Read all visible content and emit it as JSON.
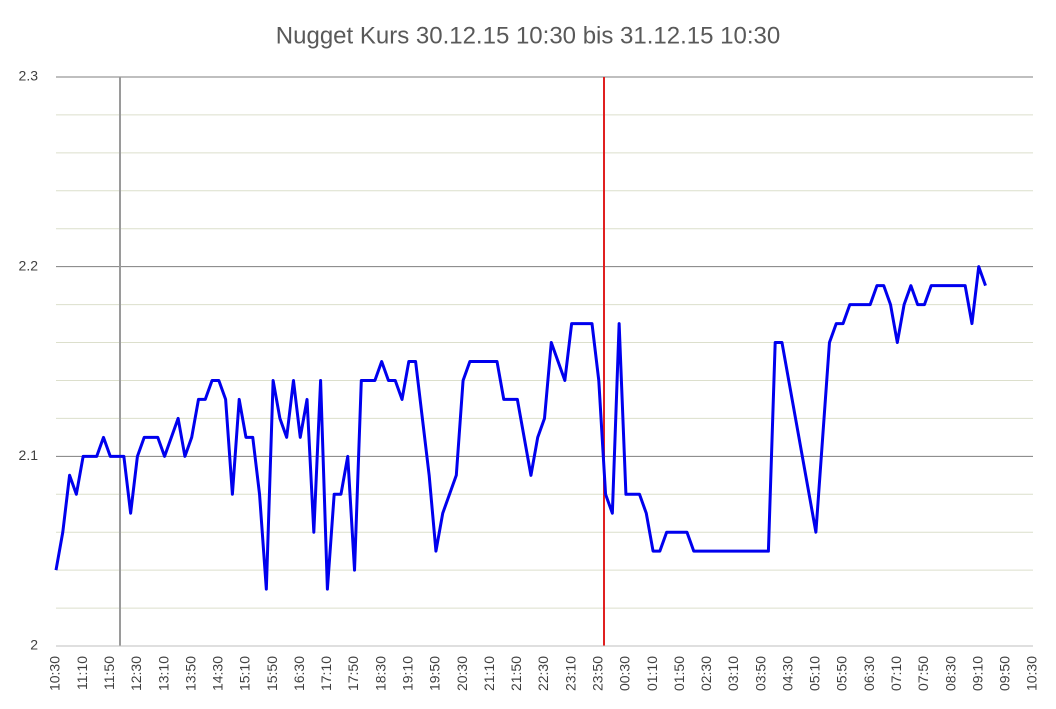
{
  "chart_data": {
    "type": "line",
    "title": "Nugget Kurs 30.12.15 10:30 bis 31.12.15 10:30",
    "categories": [
      "10:30",
      null,
      null,
      null,
      "11:10",
      null,
      null,
      null,
      "11:50",
      null,
      null,
      null,
      "12:30",
      null,
      null,
      null,
      "13:10",
      null,
      null,
      null,
      "13:50",
      null,
      null,
      null,
      "14:30",
      null,
      null,
      null,
      "15:10",
      null,
      null,
      null,
      "15:50",
      null,
      null,
      null,
      "16:30",
      null,
      null,
      null,
      "17:10",
      null,
      null,
      null,
      "17:50",
      null,
      null,
      null,
      "18:30",
      null,
      null,
      null,
      "19:10",
      null,
      null,
      null,
      "19:50",
      null,
      null,
      null,
      "20:30",
      null,
      null,
      null,
      "21:10",
      null,
      null,
      null,
      "21:50",
      null,
      null,
      null,
      "22:30",
      null,
      null,
      null,
      "23:10",
      null,
      null,
      null,
      "23:50",
      null,
      null,
      null,
      "00:30",
      null,
      null,
      null,
      "01:10",
      null,
      null,
      null,
      "01:50",
      null,
      null,
      null,
      "02:30",
      null,
      null,
      null,
      "03:10",
      null,
      null,
      null,
      "03:50",
      null,
      null,
      null,
      "04:30",
      null,
      null,
      null,
      "05:10",
      null,
      null,
      null,
      "05:50",
      null,
      null,
      null,
      "06:30",
      null,
      null,
      null,
      "07:10",
      null,
      null,
      null,
      "07:50",
      null,
      null,
      null,
      "08:30",
      null,
      null,
      null,
      "09:10",
      null,
      null,
      null,
      "09:50",
      null,
      null,
      null,
      "10:30"
    ],
    "series": [
      {
        "name": "Kurs",
        "color": "#0000ee",
        "values": [
          2.04,
          2.06,
          2.09,
          2.08,
          2.1,
          2.1,
          2.1,
          2.11,
          2.1,
          2.1,
          2.1,
          2.07,
          2.1,
          2.11,
          2.11,
          2.11,
          2.1,
          2.11,
          2.12,
          2.1,
          2.11,
          2.13,
          2.13,
          2.14,
          2.14,
          2.13,
          2.08,
          2.13,
          2.11,
          2.11,
          2.08,
          2.03,
          2.14,
          2.12,
          2.11,
          2.14,
          2.11,
          2.13,
          2.06,
          2.14,
          2.03,
          2.08,
          2.08,
          2.1,
          2.04,
          2.14,
          2.14,
          2.14,
          2.15,
          2.14,
          2.14,
          2.13,
          2.15,
          2.15,
          2.12,
          2.09,
          2.05,
          2.07,
          2.08,
          2.09,
          2.14,
          2.15,
          2.15,
          2.15,
          2.15,
          2.15,
          2.13,
          2.13,
          2.13,
          2.11,
          2.09,
          2.11,
          2.12,
          2.16,
          2.15,
          2.14,
          2.17,
          2.17,
          2.17,
          2.17,
          2.14,
          2.08,
          2.07,
          2.17,
          2.08,
          2.08,
          2.08,
          2.07,
          2.05,
          2.05,
          2.06,
          2.06,
          2.06,
          2.06,
          2.05,
          2.05,
          2.05,
          2.05,
          2.05,
          2.05,
          2.05,
          2.05,
          2.05,
          2.05,
          2.05,
          2.05,
          2.16,
          2.16,
          2.14,
          2.12,
          2.1,
          2.08,
          2.06,
          2.11,
          2.16,
          2.17,
          2.17,
          2.18,
          2.18,
          2.18,
          2.18,
          2.19,
          2.19,
          2.18,
          2.16,
          2.18,
          2.19,
          2.18,
          2.18,
          2.19,
          2.19,
          2.19,
          2.19,
          2.19,
          2.19,
          2.17,
          2.2,
          2.19,
          null,
          null,
          null,
          null,
          null,
          null,
          null
        ]
      }
    ],
    "ylim": [
      2,
      2.3
    ],
    "yticks": [
      2,
      2.1,
      2.2,
      2.3
    ],
    "minor_yticks": [
      2.02,
      2.04,
      2.06,
      2.08,
      2.12,
      2.14,
      2.16,
      2.18,
      2.22,
      2.24,
      2.26,
      2.28
    ],
    "grid": true
  }
}
